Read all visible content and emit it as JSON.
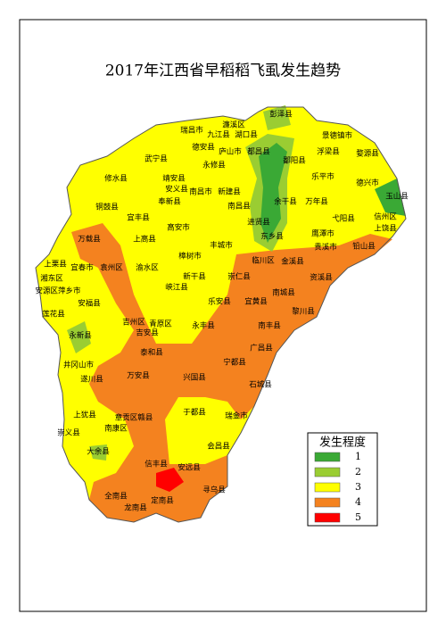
{
  "title": "2017年江西省早稻稻飞虱发生趋势",
  "labels": [
    "彭泽县",
    "濂溪区",
    "瑞昌市",
    "九江县",
    "湖口县",
    "德安县",
    "庐山市",
    "都昌县",
    "永修县",
    "武宁县",
    "修水县",
    "景德镇市",
    "浮梁县",
    "婺源县",
    "鄱阳县",
    "乐平市",
    "德兴市",
    "玉山县",
    "靖安县",
    "安义县",
    "奉新县",
    "南昌市",
    "新建县",
    "南昌县",
    "余干县",
    "万年县",
    "进贤县",
    "东乡县",
    "弋阳县",
    "信州区",
    "上饶县",
    "铜鼓县",
    "宜丰县",
    "高安市",
    "万载县",
    "上高县",
    "丰城市",
    "鹰潭市",
    "贵溪市",
    "铅山县",
    "上栗县",
    "宜春市",
    "袁州区",
    "渝水区",
    "樟树市",
    "临川区",
    "金溪县",
    "湘东区",
    "安源区萍乡市",
    "新干县",
    "崇仁县",
    "资溪县",
    "峡江县",
    "南城县",
    "安福县",
    "乐安县",
    "宜黄县",
    "黎川县",
    "莲花县",
    "吉州区",
    "青原区",
    "吉安县",
    "永丰县",
    "南丰县",
    "永新县",
    "广昌县",
    "泰和县",
    "宁都县",
    "井冈山市",
    "遂川县",
    "万安县",
    "兴国县",
    "石城县",
    "上犹县",
    "章贡区赣县",
    "于都县",
    "瑞金市",
    "南康区",
    "崇义县",
    "大余县",
    "会昌县",
    "信丰县",
    "安远县",
    "全南县",
    "定南县",
    "寻乌县",
    "龙南县"
  ],
  "legend": {
    "title": "发生程度",
    "items": [
      {
        "label": "1",
        "color": "#3aa935"
      },
      {
        "label": "2",
        "color": "#9acd32"
      },
      {
        "label": "3",
        "color": "#ffff00"
      },
      {
        "label": "4",
        "color": "#f4821f"
      },
      {
        "label": "5",
        "color": "#ff0000"
      }
    ]
  }
}
